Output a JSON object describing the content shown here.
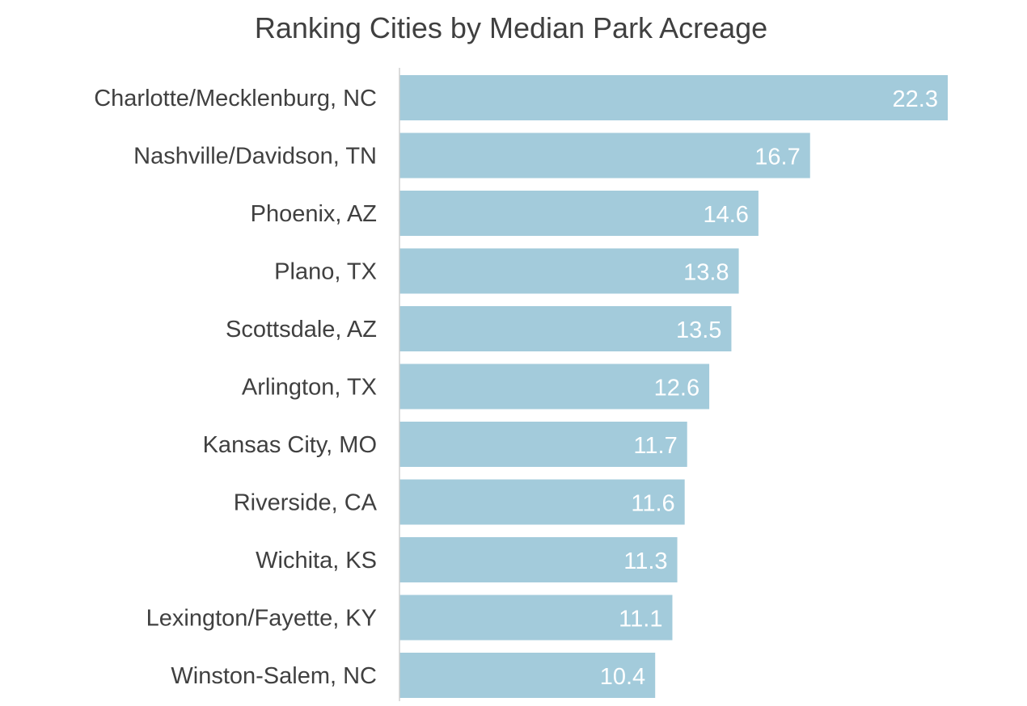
{
  "chart_data": {
    "type": "bar",
    "orientation": "horizontal",
    "title": "Ranking Cities by Median Park Acreage",
    "xlabel": "",
    "ylabel": "",
    "categories": [
      "Charlotte/Mecklenburg, NC",
      "Nashville/Davidson, TN",
      "Phoenix, AZ",
      "Plano, TX",
      "Scottsdale, AZ",
      "Arlington, TX",
      "Kansas City, MO",
      "Riverside, CA",
      "Wichita, KS",
      "Lexington/Fayette, KY",
      "Winston-Salem, NC"
    ],
    "values": [
      22.3,
      16.7,
      14.6,
      13.8,
      13.5,
      12.6,
      11.7,
      11.6,
      11.3,
      11.1,
      10.4
    ],
    "value_labels": [
      "22.3",
      "16.7",
      "14.6",
      "13.8",
      "13.5",
      "12.6",
      "11.7",
      "11.6",
      "11.3",
      "11.1",
      "10.4"
    ],
    "xlim": [
      0,
      22.3
    ],
    "grid": false,
    "legend": "none",
    "data_labels": "inside-end",
    "colors": {
      "bar": "#a3cbdb",
      "axis": "#d0d0d0",
      "text": "#404040",
      "value_text": "#ffffff"
    }
  }
}
